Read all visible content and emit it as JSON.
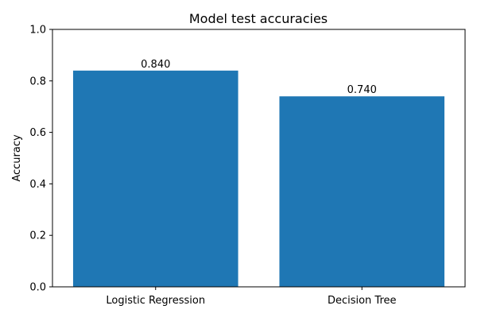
{
  "chart_data": {
    "type": "bar",
    "title": "Model test accuracies",
    "xlabel": "",
    "ylabel": "Accuracy",
    "categories": [
      "Logistic Regression",
      "Decision Tree"
    ],
    "values": [
      0.84,
      0.74
    ],
    "data_labels": [
      "0.840",
      "0.740"
    ],
    "ylim": [
      0,
      1.0
    ],
    "yticks": [
      0.0,
      0.2,
      0.4,
      0.6,
      0.8,
      1.0
    ],
    "ytick_labels": [
      "0.0",
      "0.2",
      "0.4",
      "0.6",
      "0.8",
      "1.0"
    ],
    "grid": false,
    "bar_color": "#1f77b4"
  }
}
